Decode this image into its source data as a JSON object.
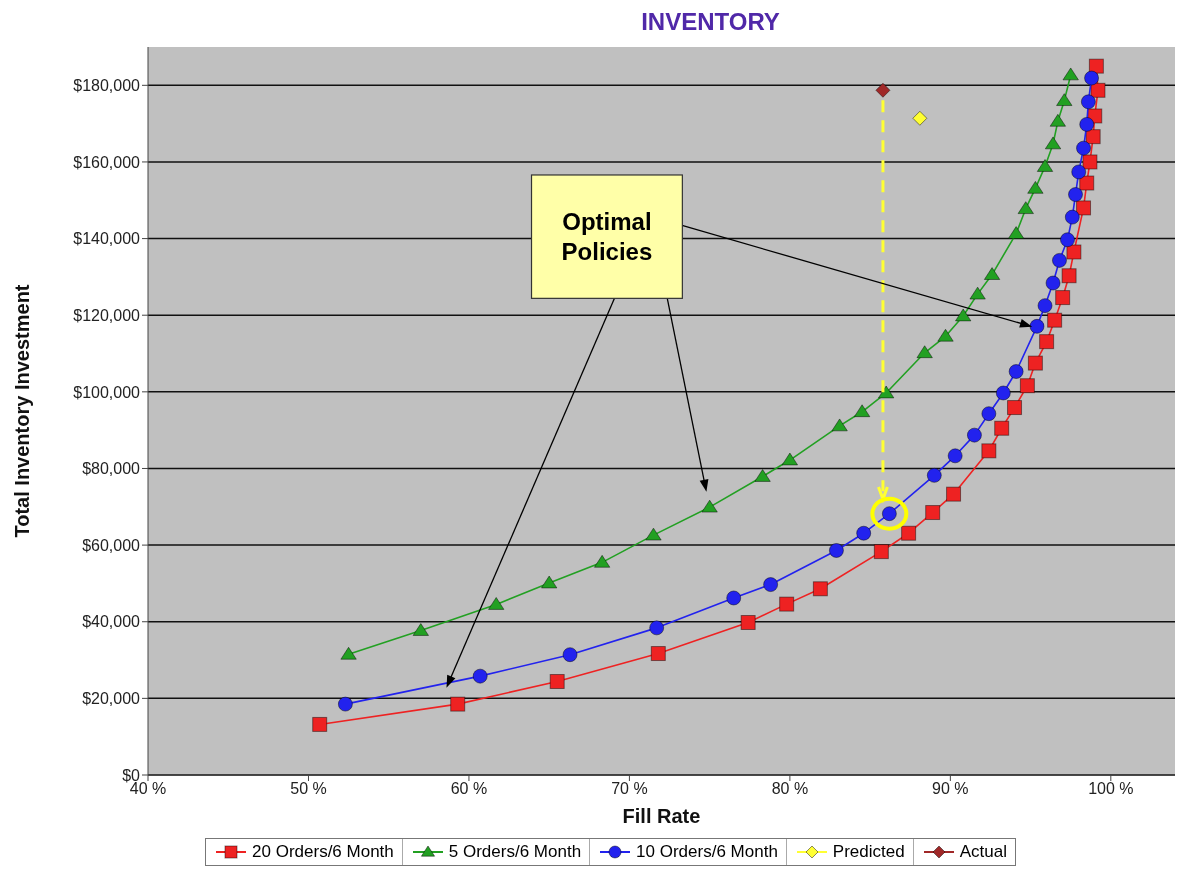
{
  "chart_data": {
    "type": "line",
    "title": "INVENTORY",
    "xlabel": "Fill Rate",
    "ylabel": "Total Inventory Investment",
    "annotations": [
      "Optimal Policies"
    ],
    "xlim": [
      40,
      104
    ],
    "xticks": [
      {
        "value": 40,
        "label": "40 %"
      },
      {
        "value": 50,
        "label": "50 %"
      },
      {
        "value": 60,
        "label": "60 %"
      },
      {
        "value": 70,
        "label": "70 %"
      },
      {
        "value": 80,
        "label": "80 %"
      },
      {
        "value": 90,
        "label": "90 %"
      },
      {
        "value": 100,
        "label": "100 %"
      }
    ],
    "ylim": [
      0,
      190000
    ],
    "yticks": [
      {
        "value": 0,
        "label": "$0"
      },
      {
        "value": 20000,
        "label": "$20,000"
      },
      {
        "value": 40000,
        "label": "$40,000"
      },
      {
        "value": 60000,
        "label": "$60,000"
      },
      {
        "value": 80000,
        "label": "$80,000"
      },
      {
        "value": 100000,
        "label": "$100,000"
      },
      {
        "value": 120000,
        "label": "$120,000"
      },
      {
        "value": 140000,
        "label": "$140,000"
      },
      {
        "value": 160000,
        "label": "$160,000"
      },
      {
        "value": 180000,
        "label": "$180,000"
      }
    ],
    "grid": "y",
    "legend": "bottom",
    "line_style": "solid",
    "series": [
      {
        "name": "20 Orders/6 Month",
        "marker": "square",
        "color": "#ee2222",
        "x": [
          50.7,
          59.3,
          65.5,
          71.8,
          77.4,
          79.8,
          81.9,
          85.7,
          87.4,
          88.9,
          90.2,
          92.4,
          93.2,
          94.0,
          94.8,
          95.3,
          96.0,
          96.5,
          97.0,
          97.4,
          97.7,
          98.3,
          98.5,
          98.7,
          98.9,
          99.0,
          99.2,
          99.1
        ],
        "values": [
          13200,
          18500,
          24400,
          31700,
          39800,
          44600,
          48600,
          58300,
          63100,
          68500,
          73300,
          84600,
          90500,
          95900,
          101600,
          107500,
          113100,
          118700,
          124600,
          130300,
          136500,
          148000,
          154500,
          160000,
          166600,
          172000,
          178700,
          185000
        ]
      },
      {
        "name": "5 Orders/6 Month",
        "marker": "triangle",
        "color": "#22a022",
        "x": [
          52.5,
          57.0,
          61.7,
          65.0,
          68.3,
          71.5,
          75.0,
          78.3,
          80.0,
          83.1,
          84.5,
          86.0,
          88.4,
          89.7,
          90.8,
          91.7,
          92.6,
          94.1,
          94.7,
          95.3,
          95.9,
          96.4,
          96.7,
          97.1,
          97.5
        ],
        "values": [
          31500,
          37700,
          44500,
          50100,
          55500,
          62600,
          69900,
          77900,
          82200,
          91100,
          94800,
          99700,
          110200,
          114500,
          119800,
          125500,
          130600,
          141300,
          147800,
          153100,
          158800,
          164700,
          170600,
          176000,
          182700
        ]
      },
      {
        "name": "10 Orders/6 Month",
        "marker": "circle",
        "color": "#2222ee",
        "x": [
          52.3,
          60.7,
          66.3,
          71.7,
          76.5,
          78.8,
          82.9,
          84.6,
          86.2,
          89.0,
          90.3,
          91.5,
          92.4,
          93.3,
          94.1,
          95.4,
          95.9,
          96.4,
          96.8,
          97.3,
          97.6,
          97.8,
          98.0,
          98.3,
          98.5,
          98.6,
          98.8
        ],
        "values": [
          18500,
          25800,
          31400,
          38400,
          46200,
          49700,
          58600,
          63100,
          68200,
          78200,
          83300,
          88700,
          94300,
          99700,
          105300,
          117100,
          122500,
          128400,
          134300,
          139700,
          145600,
          151500,
          157400,
          163600,
          169800,
          175700,
          181900
        ]
      },
      {
        "name": "Predicted",
        "type": "scatter",
        "marker": "diamond",
        "color": "#ffff33",
        "x": [
          88.1
        ],
        "values": [
          171400
        ]
      },
      {
        "name": "Actual",
        "type": "scatter",
        "marker": "diamond",
        "color": "#a02828",
        "x": [
          85.8
        ],
        "values": [
          178700
        ]
      }
    ]
  }
}
